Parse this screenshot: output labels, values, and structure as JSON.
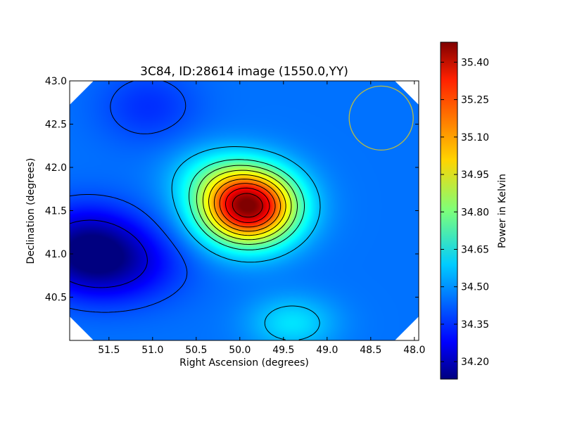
{
  "chart_data": {
    "type": "heatmap",
    "title": "3C84, ID:28614 image (1550.0,YY)",
    "xlabel": "Right Ascension (degrees)",
    "ylabel": "Declination (degrees)",
    "colorbar_label": "Power in Kelvin",
    "colormap": "jet",
    "x_inverted": true,
    "xlim": [
      51.95,
      47.95
    ],
    "ylim": [
      40.0,
      43.0
    ],
    "x_ticks": [
      51.5,
      51.0,
      50.5,
      50.0,
      49.5,
      49.0,
      48.5,
      48.0
    ],
    "x_tick_labels": [
      "51.5",
      "51.0",
      "50.5",
      "50.0",
      "49.5",
      "49.0",
      "48.5",
      "48.0"
    ],
    "y_ticks": [
      40.5,
      41.0,
      41.5,
      42.0,
      42.5,
      43.0
    ],
    "y_tick_labels": [
      "40.5",
      "41.0",
      "41.5",
      "42.0",
      "42.5",
      "43.0"
    ],
    "color_range": [
      34.13,
      35.48
    ],
    "colorbar_ticks": [
      34.2,
      34.35,
      34.5,
      34.65,
      34.8,
      34.95,
      35.1,
      35.25,
      35.4
    ],
    "colorbar_tick_labels": [
      "34.20",
      "34.35",
      "34.50",
      "34.65",
      "34.80",
      "34.95",
      "35.10",
      "35.25",
      "35.40"
    ],
    "background_level": 34.45,
    "features": [
      {
        "kind": "peak",
        "ra": 49.9,
        "dec": 41.55,
        "value": 35.48
      },
      {
        "kind": "depression",
        "ra": 51.75,
        "dec": 41.05,
        "value": 34.14
      },
      {
        "kind": "depression",
        "ra": 51.3,
        "dec": 40.85,
        "value": 34.32
      },
      {
        "kind": "depression",
        "ra": 51.05,
        "dec": 42.7,
        "value": 34.36
      },
      {
        "kind": "bump",
        "ra": 49.4,
        "dec": 40.2,
        "value": 34.6
      }
    ],
    "contour_levels": [
      34.25,
      34.4,
      34.55,
      34.7,
      34.8,
      34.9,
      35.0,
      35.1,
      35.2,
      35.3,
      35.4
    ],
    "beam_circle": {
      "ra": 48.38,
      "dec": 42.57,
      "radius_deg": 0.37
    },
    "beam_color": "#bdbd3f",
    "grid": false
  }
}
